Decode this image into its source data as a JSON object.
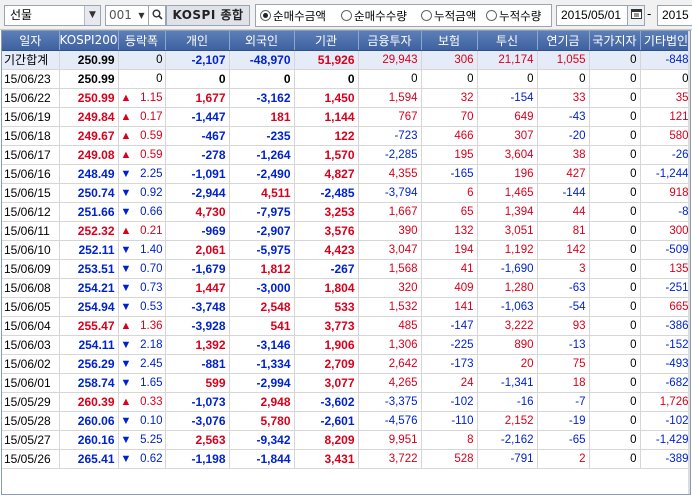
{
  "toolbar": {
    "type_select": "선물",
    "code": "001",
    "market_label": "KOSPI 종합",
    "radios": [
      {
        "label": "순매수금액",
        "checked": true
      },
      {
        "label": "순매수수량",
        "checked": false
      },
      {
        "label": "누적금액",
        "checked": false
      },
      {
        "label": "누적수량",
        "checked": false
      }
    ],
    "start_date": "2015/05/01",
    "date_separator": "-",
    "end_date": "2015"
  },
  "columns": [
    "일자",
    "KOSPI200",
    "등락폭",
    "개인",
    "외국인",
    "기관",
    "금융투자",
    "보험",
    "투신",
    "연기금",
    "국가지자",
    "기타법인"
  ],
  "rows": [
    {
      "date": "기간합계",
      "kospi": "250.99",
      "arrow": "",
      "chg": "0",
      "dir": "zero",
      "vals": [
        "-2,107",
        "-48,970",
        "51,926",
        "29,943",
        "306",
        "21,174",
        "1,055",
        "0",
        "-848"
      ]
    },
    {
      "date": "15/06/23",
      "kospi": "250.99",
      "arrow": "",
      "chg": "0",
      "dir": "zero",
      "vals": [
        "0",
        "0",
        "0",
        "0",
        "0",
        "0",
        "0",
        "0",
        "0"
      ]
    },
    {
      "date": "15/06/22",
      "kospi": "250.99",
      "arrow": "▲",
      "chg": "1.15",
      "dir": "up",
      "vals": [
        "1,677",
        "-3,162",
        "1,450",
        "1,594",
        "32",
        "-154",
        "33",
        "0",
        "35"
      ]
    },
    {
      "date": "15/06/19",
      "kospi": "249.84",
      "arrow": "▲",
      "chg": "0.17",
      "dir": "up",
      "vals": [
        "-1,447",
        "181",
        "1,144",
        "767",
        "70",
        "649",
        "-43",
        "0",
        "121"
      ]
    },
    {
      "date": "15/06/18",
      "kospi": "249.67",
      "arrow": "▲",
      "chg": "0.59",
      "dir": "up",
      "vals": [
        "-467",
        "-235",
        "122",
        "-723",
        "466",
        "307",
        "-20",
        "0",
        "580"
      ]
    },
    {
      "date": "15/06/17",
      "kospi": "249.08",
      "arrow": "▲",
      "chg": "0.59",
      "dir": "up",
      "vals": [
        "-278",
        "-1,264",
        "1,570",
        "-2,285",
        "195",
        "3,604",
        "38",
        "0",
        "-26"
      ]
    },
    {
      "date": "15/06/16",
      "kospi": "248.49",
      "arrow": "▼",
      "chg": "2.25",
      "dir": "dn",
      "vals": [
        "-1,091",
        "-2,490",
        "4,827",
        "4,355",
        "-165",
        "196",
        "427",
        "0",
        "-1,244"
      ]
    },
    {
      "date": "15/06/15",
      "kospi": "250.74",
      "arrow": "▼",
      "chg": "0.92",
      "dir": "dn",
      "vals": [
        "-2,944",
        "4,511",
        "-2,485",
        "-3,794",
        "6",
        "1,465",
        "-144",
        "0",
        "918"
      ]
    },
    {
      "date": "15/06/12",
      "kospi": "251.66",
      "arrow": "▼",
      "chg": "0.66",
      "dir": "dn",
      "vals": [
        "4,730",
        "-7,975",
        "3,253",
        "1,667",
        "65",
        "1,394",
        "44",
        "0",
        "-8"
      ]
    },
    {
      "date": "15/06/11",
      "kospi": "252.32",
      "arrow": "▲",
      "chg": "0.21",
      "dir": "up",
      "vals": [
        "-969",
        "-2,907",
        "3,576",
        "390",
        "132",
        "3,051",
        "81",
        "0",
        "300"
      ]
    },
    {
      "date": "15/06/10",
      "kospi": "252.11",
      "arrow": "▼",
      "chg": "1.40",
      "dir": "dn",
      "vals": [
        "2,061",
        "-5,975",
        "4,423",
        "3,047",
        "194",
        "1,192",
        "142",
        "0",
        "-509"
      ]
    },
    {
      "date": "15/06/09",
      "kospi": "253.51",
      "arrow": "▼",
      "chg": "0.70",
      "dir": "dn",
      "vals": [
        "-1,679",
        "1,812",
        "-267",
        "1,568",
        "41",
        "-1,690",
        "3",
        "0",
        "135"
      ]
    },
    {
      "date": "15/06/08",
      "kospi": "254.21",
      "arrow": "▼",
      "chg": "0.73",
      "dir": "dn",
      "vals": [
        "1,447",
        "-3,000",
        "1,804",
        "320",
        "409",
        "1,280",
        "-63",
        "0",
        "-251"
      ]
    },
    {
      "date": "15/06/05",
      "kospi": "254.94",
      "arrow": "▼",
      "chg": "0.53",
      "dir": "dn",
      "vals": [
        "-3,748",
        "2,548",
        "533",
        "1,532",
        "141",
        "-1,063",
        "-54",
        "0",
        "665"
      ]
    },
    {
      "date": "15/06/04",
      "kospi": "255.47",
      "arrow": "▲",
      "chg": "1.36",
      "dir": "up",
      "vals": [
        "-3,928",
        "541",
        "3,773",
        "485",
        "-147",
        "3,222",
        "93",
        "0",
        "-386"
      ]
    },
    {
      "date": "15/06/03",
      "kospi": "254.11",
      "arrow": "▼",
      "chg": "2.18",
      "dir": "dn",
      "vals": [
        "1,392",
        "-3,146",
        "1,906",
        "1,306",
        "-225",
        "890",
        "-13",
        "0",
        "-152"
      ]
    },
    {
      "date": "15/06/02",
      "kospi": "256.29",
      "arrow": "▼",
      "chg": "2.45",
      "dir": "dn",
      "vals": [
        "-881",
        "-1,334",
        "2,709",
        "2,642",
        "-173",
        "20",
        "75",
        "0",
        "-493"
      ]
    },
    {
      "date": "15/06/01",
      "kospi": "258.74",
      "arrow": "▼",
      "chg": "1.65",
      "dir": "dn",
      "vals": [
        "599",
        "-2,994",
        "3,077",
        "4,265",
        "24",
        "-1,341",
        "18",
        "0",
        "-682"
      ]
    },
    {
      "date": "15/05/29",
      "kospi": "260.39",
      "arrow": "▲",
      "chg": "0.33",
      "dir": "up",
      "vals": [
        "-1,073",
        "2,948",
        "-3,602",
        "-3,375",
        "-102",
        "-16",
        "-7",
        "0",
        "1,726"
      ]
    },
    {
      "date": "15/05/28",
      "kospi": "260.06",
      "arrow": "▼",
      "chg": "0.10",
      "dir": "dn",
      "vals": [
        "-3,076",
        "5,780",
        "-2,601",
        "-4,576",
        "-110",
        "2,152",
        "-19",
        "0",
        "-102"
      ]
    },
    {
      "date": "15/05/27",
      "kospi": "260.16",
      "arrow": "▼",
      "chg": "5.25",
      "dir": "dn",
      "vals": [
        "2,563",
        "-9,342",
        "8,209",
        "9,951",
        "8",
        "-2,162",
        "-65",
        "0",
        "-1,429"
      ]
    },
    {
      "date": "15/05/26",
      "kospi": "265.41",
      "arrow": "▼",
      "chg": "0.62",
      "dir": "dn",
      "vals": [
        "-1,198",
        "-1,844",
        "3,431",
        "3,722",
        "528",
        "-791",
        "2",
        "0",
        "-389"
      ]
    }
  ],
  "colors": {
    "up": "#d8001c",
    "down": "#0022cc",
    "header": "#4a6ca8",
    "summary_bg": "#e6ecf7"
  }
}
